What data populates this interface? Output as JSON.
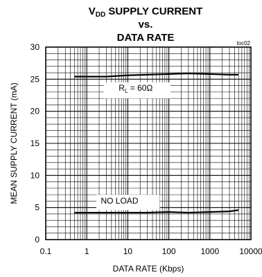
{
  "chart_data": {
    "type": "line",
    "title": {
      "line1_prefix": "V",
      "line1_subscript": "DD",
      "line1_suffix": " SUPPLY CURRENT",
      "line2": "vs.",
      "line3": "DATA RATE"
    },
    "tag": "toc02",
    "xlabel": "DATA RATE (Kbps)",
    "ylabel": "MEAN SUPPLY CURRENT  (mA)",
    "x_scale": "log",
    "xlim": [
      0.1,
      10000
    ],
    "ylim": [
      0,
      30
    ],
    "x_ticks": [
      {
        "value": 0.1,
        "label": "0.1"
      },
      {
        "value": 1,
        "label": "1"
      },
      {
        "value": 10,
        "label": "10"
      },
      {
        "value": 100,
        "label": "100"
      },
      {
        "value": 1000,
        "label": "1000"
      },
      {
        "value": 10000,
        "label": "10000"
      }
    ],
    "y_ticks": [
      {
        "value": 0,
        "label": "0"
      },
      {
        "value": 5,
        "label": "5"
      },
      {
        "value": 10,
        "label": "10"
      },
      {
        "value": 15,
        "label": "15"
      },
      {
        "value": 20,
        "label": "20"
      },
      {
        "value": 25,
        "label": "25"
      },
      {
        "value": 30,
        "label": "30"
      }
    ],
    "grid": true,
    "series": [
      {
        "x": [
          0.5,
          1,
          3,
          10,
          30,
          100,
          300,
          1000,
          3000,
          5000
        ],
        "y": [
          25.4,
          25.4,
          25.4,
          25.6,
          25.7,
          25.8,
          25.9,
          25.8,
          25.7,
          25.7
        ]
      },
      {
        "x": [
          0.5,
          1,
          3,
          10,
          30,
          100,
          300,
          1000,
          3000,
          5000
        ],
        "y": [
          4.2,
          4.2,
          4.2,
          4.2,
          4.2,
          4.3,
          4.2,
          4.3,
          4.4,
          4.6
        ]
      }
    ],
    "annotations": [
      {
        "prefix": "R",
        "subscript": "L",
        "suffix": " = 60Ω",
        "x": 6,
        "y": 23.2
      },
      {
        "text": "NO LOAD",
        "x": 2.2,
        "y": 5.6
      }
    ]
  }
}
